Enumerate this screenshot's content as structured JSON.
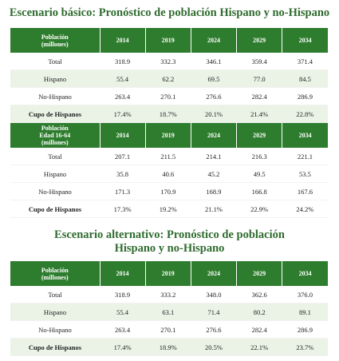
{
  "title1": "Escenario básico: Pronóstico de población Hispano y no-Hispano",
  "title2_line1": "Escenario alternativo: Pronóstico de población",
  "title2_line2": "Hispano y no-Hispano",
  "years": [
    "2014",
    "2019",
    "2024",
    "2029",
    "2034"
  ],
  "table1": {
    "header": [
      "Población",
      "(millones)"
    ],
    "rows": [
      {
        "label": "Total",
        "values": [
          "318.9",
          "332.3",
          "346.1",
          "359.4",
          "371.4"
        ]
      },
      {
        "label": "Hispano",
        "values": [
          "55.4",
          "62.2",
          "69.5",
          "77.0",
          "84.5"
        ]
      },
      {
        "label": "No-Hispano",
        "values": [
          "263.4",
          "270.1",
          "276.6",
          "282.4",
          "286.9"
        ]
      },
      {
        "label": "Cupo de Hispanos",
        "values": [
          "17.4%",
          "18.7%",
          "20.1%",
          "21.4%",
          "22.8%"
        ]
      }
    ]
  },
  "table1b": {
    "header": [
      "Población",
      "Edad 16-64",
      "(millones)"
    ],
    "rows": [
      {
        "label": "Total",
        "values": [
          "207.1",
          "211.5",
          "214.1",
          "216.3",
          "221.1"
        ]
      },
      {
        "label": "Hispano",
        "values": [
          "35.8",
          "40.6",
          "45.2",
          "49.5",
          "53.5"
        ]
      },
      {
        "label": "No-Hispano",
        "values": [
          "171.3",
          "170.9",
          "168.9",
          "166.8",
          "167.6"
        ]
      },
      {
        "label": "Cupo de Hispanos",
        "values": [
          "17.3%",
          "19.2%",
          "21.1%",
          "22.9%",
          "24.2%"
        ]
      }
    ]
  },
  "table2": {
    "header": [
      "Población",
      "(millones)"
    ],
    "rows": [
      {
        "label": "Total",
        "values": [
          "318.9",
          "333.2",
          "348.0",
          "362.6",
          "376.0"
        ]
      },
      {
        "label": "Hispano",
        "values": [
          "55.4",
          "63.1",
          "71.4",
          "80.2",
          "89.1"
        ]
      },
      {
        "label": "No-Hispano",
        "values": [
          "263.4",
          "270.1",
          "276.6",
          "282.4",
          "286.9"
        ]
      },
      {
        "label": "Cupo de Hispanos",
        "values": [
          "17.4%",
          "18.9%",
          "20.5%",
          "22.1%",
          "23.7%"
        ]
      }
    ]
  }
}
